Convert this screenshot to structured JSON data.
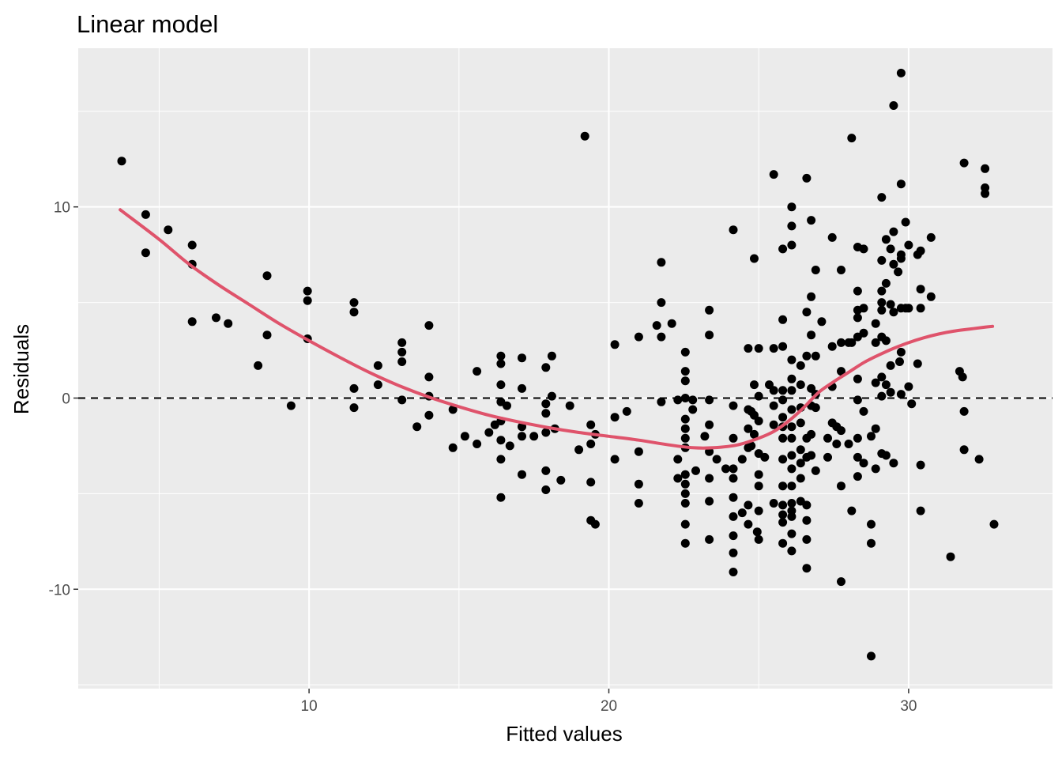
{
  "chart_data": {
    "type": "scatter",
    "title": "Linear model",
    "xlabel": "Fitted values",
    "ylabel": "Residuals",
    "xlim": [
      2.3,
      34.8
    ],
    "ylim": [
      -15.2,
      18.3
    ],
    "x_ticks": [
      10,
      20,
      30
    ],
    "x_tick_labels": [
      "10",
      "20",
      "30"
    ],
    "y_ticks": [
      -10,
      0,
      10
    ],
    "y_tick_labels": [
      "-10",
      "0",
      "10"
    ],
    "grid": true,
    "reference_line_y": 0,
    "colors": {
      "panel": "#ebebeb",
      "grid": "#ffffff",
      "points": "#000000",
      "smooth": "#df536b",
      "reference": "#000000"
    },
    "points": [
      [
        3.75,
        12.4
      ],
      [
        4.55,
        9.6
      ],
      [
        4.55,
        7.6
      ],
      [
        5.3,
        8.8
      ],
      [
        6.1,
        8.0
      ],
      [
        6.1,
        7.0
      ],
      [
        6.1,
        4.0
      ],
      [
        6.9,
        4.2
      ],
      [
        7.3,
        3.9
      ],
      [
        8.3,
        1.7
      ],
      [
        8.6,
        6.4
      ],
      [
        8.6,
        3.3
      ],
      [
        9.4,
        -0.4
      ],
      [
        9.95,
        5.6
      ],
      [
        9.95,
        5.1
      ],
      [
        9.95,
        3.1
      ],
      [
        11.5,
        5.0
      ],
      [
        11.5,
        4.5
      ],
      [
        11.5,
        0.5
      ],
      [
        11.5,
        -0.5
      ],
      [
        12.3,
        1.7
      ],
      [
        12.3,
        0.7
      ],
      [
        13.1,
        2.9
      ],
      [
        13.1,
        2.4
      ],
      [
        13.1,
        1.9
      ],
      [
        13.1,
        -0.1
      ],
      [
        13.6,
        -1.5
      ],
      [
        14.0,
        3.8
      ],
      [
        14.0,
        1.1
      ],
      [
        14.0,
        0.1
      ],
      [
        14.0,
        -0.9
      ],
      [
        14.8,
        -0.6
      ],
      [
        14.8,
        -2.6
      ],
      [
        15.2,
        -2.0
      ],
      [
        15.6,
        1.4
      ],
      [
        15.6,
        -2.4
      ],
      [
        16.0,
        -1.8
      ],
      [
        16.2,
        -1.4
      ],
      [
        16.4,
        2.2
      ],
      [
        16.4,
        1.8
      ],
      [
        16.4,
        0.7
      ],
      [
        16.4,
        -0.2
      ],
      [
        16.4,
        -1.2
      ],
      [
        16.4,
        -2.2
      ],
      [
        16.4,
        -3.2
      ],
      [
        16.4,
        -5.2
      ],
      [
        16.6,
        -0.4
      ],
      [
        16.7,
        -2.5
      ],
      [
        17.1,
        2.1
      ],
      [
        17.1,
        0.5
      ],
      [
        17.1,
        -1.5
      ],
      [
        17.1,
        -2.0
      ],
      [
        17.1,
        -4.0
      ],
      [
        17.5,
        -2.0
      ],
      [
        17.9,
        1.6
      ],
      [
        17.9,
        -0.3
      ],
      [
        17.9,
        -0.8
      ],
      [
        17.9,
        -1.8
      ],
      [
        17.9,
        -3.8
      ],
      [
        17.9,
        -4.8
      ],
      [
        18.1,
        2.2
      ],
      [
        18.1,
        0.1
      ],
      [
        18.2,
        -1.6
      ],
      [
        18.4,
        -4.3
      ],
      [
        18.7,
        -0.4
      ],
      [
        19.0,
        -2.7
      ],
      [
        19.2,
        13.7
      ],
      [
        19.4,
        -1.4
      ],
      [
        19.4,
        -2.4
      ],
      [
        19.4,
        -4.4
      ],
      [
        19.4,
        -6.4
      ],
      [
        19.55,
        -1.9
      ],
      [
        19.55,
        -6.6
      ],
      [
        20.2,
        2.8
      ],
      [
        20.2,
        -1.0
      ],
      [
        20.2,
        -3.2
      ],
      [
        20.6,
        -0.7
      ],
      [
        21.0,
        3.2
      ],
      [
        21.0,
        -2.8
      ],
      [
        21.0,
        -4.5
      ],
      [
        21.0,
        -5.5
      ],
      [
        21.6,
        3.8
      ],
      [
        21.75,
        7.1
      ],
      [
        21.75,
        5.0
      ],
      [
        21.75,
        3.2
      ],
      [
        21.75,
        -0.2
      ],
      [
        22.1,
        3.9
      ],
      [
        22.3,
        -0.1
      ],
      [
        22.3,
        -3.2
      ],
      [
        22.3,
        -4.2
      ],
      [
        22.55,
        2.4
      ],
      [
        22.55,
        1.4
      ],
      [
        22.55,
        0.9
      ],
      [
        22.55,
        0.0
      ],
      [
        22.55,
        -1.1
      ],
      [
        22.55,
        -1.6
      ],
      [
        22.55,
        -2.1
      ],
      [
        22.55,
        -2.6
      ],
      [
        22.55,
        -4.0
      ],
      [
        22.55,
        -4.5
      ],
      [
        22.55,
        -5.0
      ],
      [
        22.55,
        -5.5
      ],
      [
        22.55,
        -6.6
      ],
      [
        22.55,
        -7.6
      ],
      [
        22.8,
        -0.1
      ],
      [
        22.8,
        -0.6
      ],
      [
        22.9,
        -3.8
      ],
      [
        23.2,
        -2.0
      ],
      [
        23.35,
        4.6
      ],
      [
        23.35,
        3.3
      ],
      [
        23.35,
        -0.1
      ],
      [
        23.35,
        -1.4
      ],
      [
        23.35,
        -2.8
      ],
      [
        23.35,
        -4.2
      ],
      [
        23.35,
        -5.4
      ],
      [
        23.35,
        -7.4
      ],
      [
        23.6,
        -3.2
      ],
      [
        23.9,
        -3.7
      ],
      [
        24.15,
        8.8
      ],
      [
        24.15,
        -0.4
      ],
      [
        24.15,
        -2.1
      ],
      [
        24.15,
        -3.7
      ],
      [
        24.15,
        -4.2
      ],
      [
        24.15,
        -5.2
      ],
      [
        24.15,
        -6.2
      ],
      [
        24.15,
        -7.2
      ],
      [
        24.15,
        -8.1
      ],
      [
        24.15,
        -9.1
      ],
      [
        24.45,
        -3.2
      ],
      [
        24.45,
        -6.0
      ],
      [
        24.65,
        2.6
      ],
      [
        24.65,
        -0.6
      ],
      [
        24.65,
        -1.6
      ],
      [
        24.65,
        -2.6
      ],
      [
        24.65,
        -5.6
      ],
      [
        24.65,
        -6.6
      ],
      [
        24.75,
        -0.7
      ],
      [
        24.75,
        -2.5
      ],
      [
        24.85,
        7.3
      ],
      [
        24.85,
        0.7
      ],
      [
        24.85,
        -0.9
      ],
      [
        24.85,
        -1.9
      ],
      [
        24.95,
        -7.0
      ],
      [
        25.0,
        2.6
      ],
      [
        25.0,
        0.1
      ],
      [
        25.0,
        -1.2
      ],
      [
        25.0,
        -2.9
      ],
      [
        25.0,
        -4.0
      ],
      [
        25.0,
        -4.6
      ],
      [
        25.0,
        -5.9
      ],
      [
        25.0,
        -7.4
      ],
      [
        25.2,
        -3.1
      ],
      [
        25.35,
        0.7
      ],
      [
        25.5,
        11.7
      ],
      [
        25.5,
        2.6
      ],
      [
        25.5,
        0.4
      ],
      [
        25.5,
        -0.4
      ],
      [
        25.5,
        -1.4
      ],
      [
        25.5,
        -5.5
      ],
      [
        25.8,
        7.8
      ],
      [
        25.8,
        4.1
      ],
      [
        25.8,
        2.7
      ],
      [
        25.8,
        0.4
      ],
      [
        25.8,
        -0.1
      ],
      [
        25.8,
        -1.0
      ],
      [
        25.8,
        -1.5
      ],
      [
        25.8,
        -2.1
      ],
      [
        25.8,
        -3.2
      ],
      [
        25.8,
        -4.6
      ],
      [
        25.8,
        -5.6
      ],
      [
        25.8,
        -6.1
      ],
      [
        25.8,
        -6.5
      ],
      [
        25.8,
        -7.6
      ],
      [
        26.1,
        10.0
      ],
      [
        26.1,
        9.0
      ],
      [
        26.1,
        8.0
      ],
      [
        26.1,
        2.0
      ],
      [
        26.1,
        1.0
      ],
      [
        26.1,
        0.4
      ],
      [
        26.1,
        -0.6
      ],
      [
        26.1,
        -1.5
      ],
      [
        26.1,
        -2.1
      ],
      [
        26.1,
        -3.0
      ],
      [
        26.1,
        -3.7
      ],
      [
        26.1,
        -4.6
      ],
      [
        26.1,
        -5.5
      ],
      [
        26.1,
        -5.9
      ],
      [
        26.1,
        -6.2
      ],
      [
        26.1,
        -7.1
      ],
      [
        26.1,
        -8.0
      ],
      [
        26.4,
        1.7
      ],
      [
        26.4,
        0.7
      ],
      [
        26.4,
        -0.5
      ],
      [
        26.4,
        -1.3
      ],
      [
        26.4,
        -2.7
      ],
      [
        26.4,
        -3.4
      ],
      [
        26.4,
        -4.2
      ],
      [
        26.4,
        -5.4
      ],
      [
        26.6,
        11.5
      ],
      [
        26.6,
        4.5
      ],
      [
        26.6,
        2.2
      ],
      [
        26.6,
        -2.1
      ],
      [
        26.6,
        -3.1
      ],
      [
        26.6,
        -5.6
      ],
      [
        26.6,
        -6.4
      ],
      [
        26.6,
        -7.4
      ],
      [
        26.6,
        -8.9
      ],
      [
        26.75,
        9.3
      ],
      [
        26.75,
        5.3
      ],
      [
        26.75,
        3.3
      ],
      [
        26.75,
        0.5
      ],
      [
        26.75,
        -0.4
      ],
      [
        26.75,
        -1.9
      ],
      [
        26.75,
        -3.0
      ],
      [
        26.9,
        6.7
      ],
      [
        26.9,
        2.2
      ],
      [
        26.9,
        0.2
      ],
      [
        26.9,
        -0.5
      ],
      [
        26.9,
        -3.8
      ],
      [
        27.1,
        4.0
      ],
      [
        27.3,
        -2.1
      ],
      [
        27.3,
        -3.1
      ],
      [
        27.45,
        8.4
      ],
      [
        27.45,
        2.7
      ],
      [
        27.45,
        0.6
      ],
      [
        27.45,
        -1.3
      ],
      [
        27.6,
        -1.5
      ],
      [
        27.6,
        -2.4
      ],
      [
        27.75,
        6.7
      ],
      [
        27.75,
        2.9
      ],
      [
        27.75,
        1.4
      ],
      [
        27.75,
        -1.7
      ],
      [
        27.75,
        -4.6
      ],
      [
        27.75,
        -9.6
      ],
      [
        28.0,
        2.9
      ],
      [
        28.0,
        -2.4
      ],
      [
        28.1,
        13.6
      ],
      [
        28.1,
        2.9
      ],
      [
        28.1,
        -5.9
      ],
      [
        28.3,
        7.9
      ],
      [
        28.3,
        5.6
      ],
      [
        28.3,
        4.6
      ],
      [
        28.3,
        4.2
      ],
      [
        28.3,
        3.2
      ],
      [
        28.3,
        1.0
      ],
      [
        28.3,
        -0.1
      ],
      [
        28.3,
        -2.1
      ],
      [
        28.3,
        -3.1
      ],
      [
        28.3,
        -4.1
      ],
      [
        28.5,
        7.8
      ],
      [
        28.5,
        4.7
      ],
      [
        28.5,
        3.4
      ],
      [
        28.5,
        -0.7
      ],
      [
        28.5,
        -3.4
      ],
      [
        28.75,
        -2.0
      ],
      [
        28.75,
        -6.6
      ],
      [
        28.75,
        -7.6
      ],
      [
        28.75,
        -13.5
      ],
      [
        28.9,
        3.9
      ],
      [
        28.9,
        2.9
      ],
      [
        28.9,
        0.8
      ],
      [
        28.9,
        -1.6
      ],
      [
        28.9,
        -3.7
      ],
      [
        29.1,
        10.5
      ],
      [
        29.1,
        7.2
      ],
      [
        29.1,
        5.6
      ],
      [
        29.1,
        5.0
      ],
      [
        29.1,
        4.6
      ],
      [
        29.1,
        3.2
      ],
      [
        29.1,
        1.1
      ],
      [
        29.1,
        0.1
      ],
      [
        29.1,
        -2.9
      ],
      [
        29.25,
        8.3
      ],
      [
        29.25,
        6.0
      ],
      [
        29.25,
        3.0
      ],
      [
        29.25,
        0.7
      ],
      [
        29.25,
        -3.0
      ],
      [
        29.4,
        7.8
      ],
      [
        29.4,
        4.9
      ],
      [
        29.4,
        1.7
      ],
      [
        29.4,
        0.3
      ],
      [
        29.5,
        15.3
      ],
      [
        29.5,
        8.7
      ],
      [
        29.5,
        7.0
      ],
      [
        29.5,
        4.5
      ],
      [
        29.5,
        -3.4
      ],
      [
        29.65,
        6.6
      ],
      [
        29.7,
        1.9
      ],
      [
        29.75,
        17.0
      ],
      [
        29.75,
        11.2
      ],
      [
        29.75,
        7.5
      ],
      [
        29.75,
        7.3
      ],
      [
        29.75,
        4.7
      ],
      [
        29.75,
        2.4
      ],
      [
        29.75,
        0.2
      ],
      [
        29.9,
        9.2
      ],
      [
        29.9,
        4.7
      ],
      [
        30.0,
        8.0
      ],
      [
        30.0,
        4.7
      ],
      [
        30.0,
        0.6
      ],
      [
        30.1,
        -0.3
      ],
      [
        30.3,
        7.5
      ],
      [
        30.3,
        1.8
      ],
      [
        30.4,
        7.7
      ],
      [
        30.4,
        5.7
      ],
      [
        30.4,
        4.7
      ],
      [
        30.4,
        -3.5
      ],
      [
        30.4,
        -5.9
      ],
      [
        30.75,
        8.4
      ],
      [
        30.75,
        5.3
      ],
      [
        31.4,
        -8.3
      ],
      [
        31.7,
        1.4
      ],
      [
        31.8,
        1.1
      ],
      [
        31.85,
        12.3
      ],
      [
        31.85,
        -0.7
      ],
      [
        31.85,
        -2.7
      ],
      [
        32.35,
        -3.2
      ],
      [
        32.55,
        12.0
      ],
      [
        32.55,
        11.0
      ],
      [
        32.55,
        10.7
      ],
      [
        32.85,
        -6.6
      ]
    ],
    "smooth": {
      "method": "loess",
      "x": [
        3.7,
        5,
        6,
        7,
        8,
        9,
        10,
        11,
        12,
        13,
        14,
        15,
        16,
        17,
        18,
        19,
        20,
        21,
        22,
        22.8,
        23.5,
        24.3,
        25,
        25.5,
        26,
        26.5,
        27,
        27.5,
        28,
        28.5,
        29,
        29.5,
        30,
        30.5,
        31,
        31.5,
        32,
        32.5,
        32.8
      ],
      "y": [
        9.85,
        8.3,
        7.0,
        5.9,
        4.9,
        3.9,
        3.0,
        2.15,
        1.35,
        0.65,
        0.05,
        -0.45,
        -0.9,
        -1.25,
        -1.55,
        -1.8,
        -2.0,
        -2.2,
        -2.45,
        -2.6,
        -2.6,
        -2.45,
        -2.1,
        -1.75,
        -1.2,
        -0.5,
        0.3,
        0.85,
        1.35,
        1.85,
        2.25,
        2.6,
        2.9,
        3.15,
        3.35,
        3.5,
        3.6,
        3.7,
        3.75
      ]
    }
  }
}
